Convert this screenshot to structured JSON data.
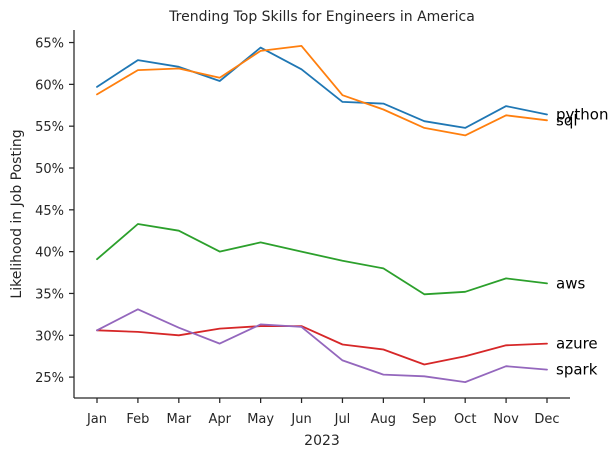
{
  "chart_data": {
    "type": "line",
    "title": "Trending Top Skills for Engineers in America",
    "xlabel": "2023",
    "ylabel": "Likelihood in Job Posting",
    "categories": [
      "Jan",
      "Feb",
      "Mar",
      "Apr",
      "May",
      "Jun",
      "Jul",
      "Aug",
      "Sep",
      "Oct",
      "Nov",
      "Dec"
    ],
    "ylim": [
      22.5,
      66.5
    ],
    "yticks": [
      25,
      30,
      35,
      40,
      45,
      50,
      55,
      60,
      65
    ],
    "ytick_labels": [
      "25%",
      "30%",
      "35%",
      "40%",
      "45%",
      "50%",
      "55%",
      "60%",
      "65%"
    ],
    "grid": false,
    "legend": "none",
    "series": [
      {
        "name": "python",
        "color": "#1f77b4",
        "values": [
          59.7,
          62.9,
          62.1,
          60.4,
          64.4,
          61.8,
          57.9,
          57.7,
          55.6,
          54.8,
          57.4,
          56.4
        ]
      },
      {
        "name": "sql",
        "color": "#ff7f0e",
        "values": [
          58.8,
          61.7,
          61.9,
          60.8,
          64.0,
          64.6,
          58.7,
          57.0,
          54.8,
          53.9,
          56.3,
          55.7
        ]
      },
      {
        "name": "aws",
        "color": "#2ca02c",
        "values": [
          39.1,
          43.3,
          42.5,
          40.0,
          41.1,
          40.0,
          38.9,
          38.0,
          34.9,
          35.2,
          36.8,
          36.2
        ]
      },
      {
        "name": "azure",
        "color": "#d62728",
        "values": [
          30.6,
          30.4,
          30.0,
          30.8,
          31.1,
          31.1,
          28.9,
          28.3,
          26.5,
          27.5,
          28.8,
          29.0
        ]
      },
      {
        "name": "spark",
        "color": "#9467bd",
        "values": [
          30.6,
          33.1,
          30.9,
          29.0,
          31.3,
          31.0,
          27.0,
          25.3,
          25.1,
          24.4,
          26.3,
          25.9
        ]
      }
    ]
  }
}
